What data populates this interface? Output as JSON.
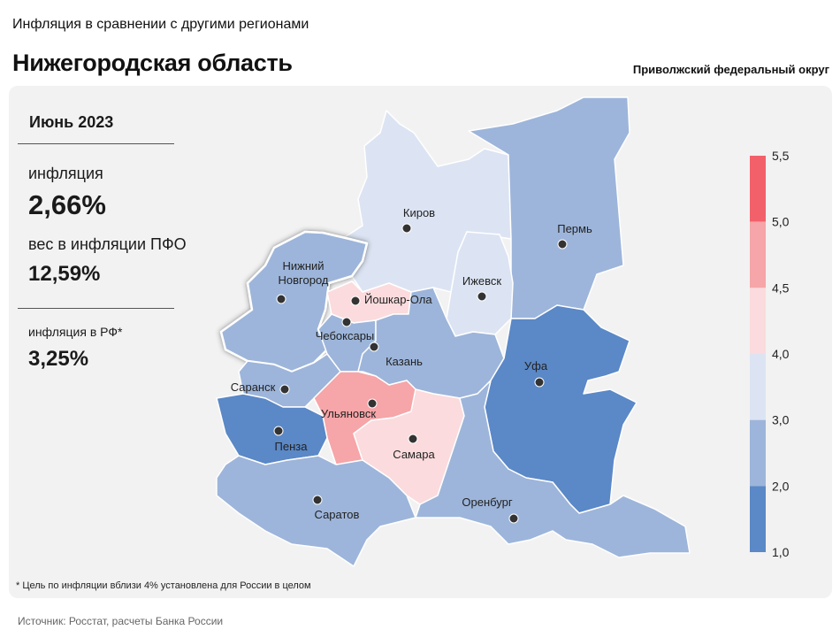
{
  "header": {
    "subtitle": "Инфляция в сравнении с другими регионами",
    "title": "Нижегородская область",
    "district": "Приволжский федеральный округ"
  },
  "summary": {
    "period": "Июнь 2023",
    "inflation_label": "инфляция",
    "inflation_value": "2,66%",
    "weight_label": "вес в инфляции ПФО",
    "weight_value": "12,59%",
    "rf_label": "инфляция в РФ*",
    "rf_value": "3,25%"
  },
  "legend": {
    "ticks": [
      "5,5",
      "5,0",
      "4,5",
      "4,0",
      "3,0",
      "2,0",
      "1,0"
    ],
    "bins": [
      {
        "from": 5.0,
        "to": 5.5,
        "color": "#f2616a"
      },
      {
        "from": 4.5,
        "to": 5.0,
        "color": "#f6a5a8"
      },
      {
        "from": 4.0,
        "to": 4.5,
        "color": "#fbdbdd"
      },
      {
        "from": 3.0,
        "to": 4.0,
        "color": "#dce4f3"
      },
      {
        "from": 2.0,
        "to": 3.0,
        "color": "#9db5da"
      },
      {
        "from": 1.0,
        "to": 2.0,
        "color": "#5b88c6"
      }
    ]
  },
  "regions": [
    {
      "city": "Киров",
      "color": "#dce4f3"
    },
    {
      "city": "Пермь",
      "color": "#9db5da"
    },
    {
      "city": "Нижний Новгород",
      "color": "#9db5da",
      "highlight": true
    },
    {
      "city": "Йошкар-Ола",
      "color": "#fbdbdd"
    },
    {
      "city": "Ижевск",
      "color": "#dce4f3"
    },
    {
      "city": "Чебоксары",
      "color": "#9db5da"
    },
    {
      "city": "Казань",
      "color": "#9db5da"
    },
    {
      "city": "Уфа",
      "color": "#5b88c6"
    },
    {
      "city": "Саранск",
      "color": "#9db5da"
    },
    {
      "city": "Ульяновск",
      "color": "#f6a5a8"
    },
    {
      "city": "Пенза",
      "color": "#5b88c6"
    },
    {
      "city": "Самара",
      "color": "#fbdbdd"
    },
    {
      "city": "Саратов",
      "color": "#9db5da"
    },
    {
      "city": "Оренбург",
      "color": "#9db5da"
    }
  ],
  "footnote": "* Цель по инфляции вблизи 4% установлена для России в целом",
  "source": "Источник: Росстат, расчеты Банка России"
}
